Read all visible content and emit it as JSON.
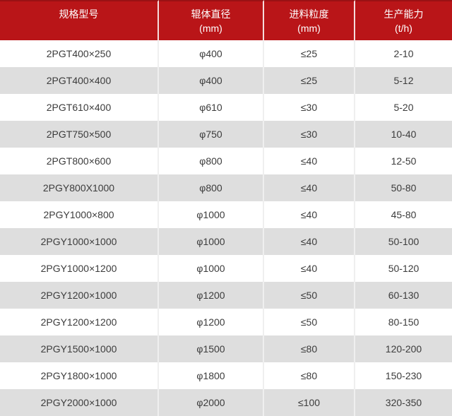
{
  "chart_data": {
    "type": "table",
    "title": "",
    "headers": [
      {
        "line1": "规格型号",
        "line2": ""
      },
      {
        "line1": "辊体直径",
        "line2": "(mm)"
      },
      {
        "line1": "进料粒度",
        "line2": "(mm)"
      },
      {
        "line1": "生产能力",
        "line2": "(t/h)"
      }
    ],
    "column_keys": [
      "model",
      "roller-diameter",
      "feed-size",
      "capacity"
    ],
    "rows": [
      [
        "2PGT400×250",
        "φ400",
        "≤25",
        "2-10"
      ],
      [
        "2PGT400×400",
        "φ400",
        "≤25",
        "5-12"
      ],
      [
        "2PGT610×400",
        "φ610",
        "≤30",
        "5-20"
      ],
      [
        "2PGT750×500",
        "φ750",
        "≤30",
        "10-40"
      ],
      [
        "2PGT800×600",
        "φ800",
        "≤40",
        "12-50"
      ],
      [
        "2PGY800X1000",
        "φ800",
        "≤40",
        "50-80"
      ],
      [
        "2PGY1000×800",
        "φ1000",
        "≤40",
        "45-80"
      ],
      [
        "2PGY1000×1000",
        "φ1000",
        "≤40",
        "50-100"
      ],
      [
        "2PGY1000×1200",
        "φ1000",
        "≤40",
        "50-120"
      ],
      [
        "2PGY1200×1000",
        "φ1200",
        "≤50",
        "60-130"
      ],
      [
        "2PGY1200×1200",
        "φ1200",
        "≤50",
        "80-150"
      ],
      [
        "2PGY1500×1000",
        "φ1500",
        "≤80",
        "120-200"
      ],
      [
        "2PGY1800×1000",
        "φ1800",
        "≤80",
        "150-230"
      ],
      [
        "2PGY2000×1000",
        "φ2000",
        "≤100",
        "320-350"
      ]
    ],
    "colors": {
      "header_bg": "#b91518",
      "header_top_border": "#9a1114",
      "header_text": "#ffffff",
      "row_bg": "#ffffff",
      "row_alt_bg": "#dedede",
      "cell_border": "#efefef",
      "data_text": "#3c3c3c"
    }
  }
}
